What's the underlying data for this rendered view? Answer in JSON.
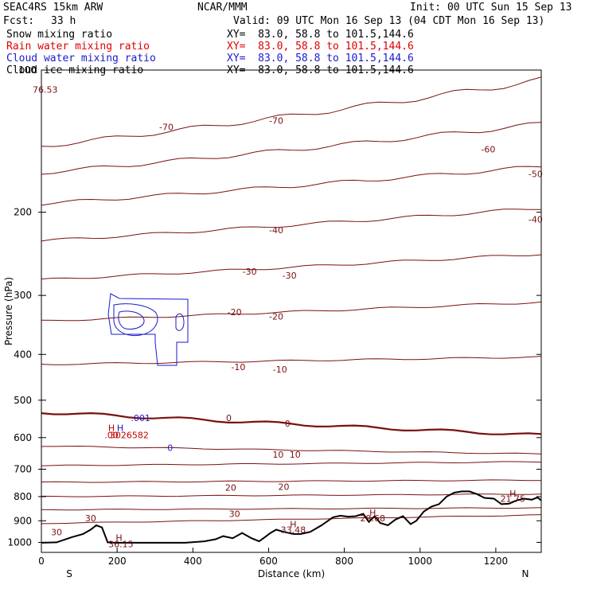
{
  "header": {
    "model": "SEAC4RS 15km ARW",
    "center": "NCAR/MMM",
    "init": "Init: 00 UTC Sun 15 Sep 13",
    "fcst_label": "Fcst:",
    "fcst_value": "33 h",
    "valid": "Valid: 09 UTC Mon 16 Sep 13 (04 CDT Mon 16 Sep 13)"
  },
  "fields": [
    {
      "name": "Snow mixing ratio",
      "xy": "XY=  83.0, 58.8 to 101.5,144.6",
      "color": "#000000"
    },
    {
      "name": "Rain water mixing ratio",
      "xy": "XY=  83.0, 58.8 to 101.5,144.6",
      "color": "#e00000"
    },
    {
      "name": "Cloud water mixing ratio",
      "xy": "XY=  83.0, 58.8 to 101.5,144.6",
      "color": "#1a1ad0"
    },
    {
      "name": "Cloud ice mixing ratio",
      "xy": "XY=  83.0, 58.8 to 101.5,144.6",
      "color": "#000000"
    }
  ],
  "colors": {
    "temperature": "#7a1010",
    "cloud_water": "#1a1ad0",
    "rain_label": "#c00000",
    "terrain": "#000000"
  },
  "chart_data": {
    "type": "cross-section contour",
    "xlabel": "Distance (km)",
    "ylabel": "Pressure (hPa)",
    "xlim": [
      0,
      1320
    ],
    "ylim": [
      1050,
      100
    ],
    "y_scale": "log",
    "x_ticks": [
      0,
      200,
      400,
      600,
      800,
      1000,
      1200
    ],
    "y_ticks": [
      200,
      300,
      400,
      500,
      600,
      700,
      800,
      900,
      1000
    ],
    "y_top_label": "100",
    "x_end_labels": {
      "left": "S",
      "right": "N"
    },
    "terrain": {
      "x": [
        0,
        40,
        80,
        110,
        130,
        145,
        160,
        175,
        195,
        230,
        300,
        380,
        430,
        460,
        480,
        505,
        530,
        555,
        575,
        590,
        605,
        620,
        640,
        665,
        685,
        710,
        740,
        770,
        790,
        810,
        830,
        850,
        865,
        880,
        895,
        915,
        935,
        955,
        975,
        990,
        1010,
        1030,
        1050,
        1070,
        1090,
        1110,
        1130,
        1150,
        1170,
        1195,
        1215,
        1235,
        1255,
        1275,
        1295,
        1310,
        1320
      ],
      "p": [
        1002,
        1000,
        975,
        960,
        940,
        920,
        930,
        1000,
        1002,
        1002,
        1002,
        1002,
        995,
        985,
        970,
        980,
        955,
        980,
        995,
        975,
        955,
        940,
        950,
        960,
        960,
        950,
        920,
        885,
        878,
        882,
        880,
        870,
        905,
        880,
        910,
        920,
        895,
        880,
        915,
        900,
        860,
        840,
        830,
        800,
        785,
        780,
        780,
        790,
        805,
        808,
        830,
        828,
        815,
        808,
        812,
        803,
        815
      ]
    },
    "isotherms": [
      {
        "level": -70,
        "y0": 145,
        "y1": 105
      },
      {
        "level": -60,
        "y0": 165,
        "y1": 130
      },
      {
        "level": -50,
        "y0": 192,
        "y1": 160
      },
      {
        "level": -40,
        "y0": 230,
        "y1": 196
      },
      {
        "level": -30,
        "y0": 278,
        "y1": 245
      },
      {
        "level": -20,
        "y0": 340,
        "y1": 310
      },
      {
        "level": -10,
        "y0": 420,
        "y1": 405
      },
      {
        "level": 0,
        "y0": 530,
        "y1": 593
      },
      {
        "level": 10,
        "y0": 625,
        "y1": 650
      },
      {
        "level": 10,
        "y0": 688,
        "y1": 675
      },
      {
        "level": 20,
        "y0": 746,
        "y1": 738
      },
      {
        "level": 20,
        "y0": 800,
        "y1": 790
      },
      {
        "level": 30,
        "y0": 853,
        "y1": 845
      },
      {
        "level": 30,
        "y0": 912,
        "y1": 875
      }
    ],
    "contour_labels": [
      {
        "text": "-70",
        "x": 330,
        "p": 132
      },
      {
        "text": "-70",
        "x": 620,
        "p": 128
      },
      {
        "text": "-60",
        "x": 1180,
        "p": 147
      },
      {
        "text": "-50",
        "x": 1305,
        "p": 166
      },
      {
        "text": "-40",
        "x": 620,
        "p": 218
      },
      {
        "text": "-40",
        "x": 1305,
        "p": 207
      },
      {
        "text": "-30",
        "x": 550,
        "p": 267
      },
      {
        "text": "-30",
        "x": 655,
        "p": 272
      },
      {
        "text": "-20",
        "x": 510,
        "p": 325
      },
      {
        "text": "-20",
        "x": 620,
        "p": 332
      },
      {
        "text": "-10",
        "x": 520,
        "p": 425
      },
      {
        "text": "-10",
        "x": 630,
        "p": 430
      },
      {
        "text": "0",
        "x": 495,
        "p": 545
      },
      {
        "text": "0",
        "x": 650,
        "p": 560
      },
      {
        "text": "10",
        "x": 625,
        "p": 652
      },
      {
        "text": "10",
        "x": 670,
        "p": 652
      },
      {
        "text": "20",
        "x": 500,
        "p": 765
      },
      {
        "text": "20",
        "x": 640,
        "p": 763
      },
      {
        "text": "30",
        "x": 130,
        "p": 888
      },
      {
        "text": "30",
        "x": 510,
        "p": 870
      },
      {
        "text": "30",
        "x": 40,
        "p": 952
      }
    ],
    "annotations": [
      {
        "text": "76.53",
        "x": 10,
        "p": 110,
        "color": "#7a1010"
      },
      {
        "text": "H",
        "x": 205,
        "p": 978,
        "color": "#7a1010"
      },
      {
        "text": "36.15",
        "x": 210,
        "p": 1008,
        "color": "#7a1010"
      },
      {
        "text": "H",
        "x": 665,
        "p": 915,
        "color": "#7a1010"
      },
      {
        "text": "33.48",
        "x": 665,
        "p": 940,
        "color": "#7a1010"
      },
      {
        "text": "H",
        "x": 875,
        "p": 865,
        "color": "#7a1010"
      },
      {
        "text": "29.68",
        "x": 875,
        "p": 888,
        "color": "#7a1010"
      },
      {
        "text": "H",
        "x": 1245,
        "p": 788,
        "color": "#7a1010"
      },
      {
        "text": "21.75",
        "x": 1245,
        "p": 808,
        "color": "#7a1010"
      },
      {
        "text": "H",
        "x": 185,
        "p": 572,
        "color": "#c00000"
      },
      {
        "text": "H",
        "x": 208,
        "p": 572,
        "color": "#1a1ad0"
      },
      {
        "text": ".001",
        "x": 262,
        "p": 545,
        "color": "#1a1ad0"
      },
      {
        "text": ".00",
        "x": 185,
        "p": 592,
        "color": "#c00000"
      },
      {
        "text": "3026582",
        "x": 232,
        "p": 592,
        "color": "#c00000"
      },
      {
        "text": "0",
        "x": 340,
        "p": 630,
        "color": "#1a1ad0"
      }
    ]
  }
}
